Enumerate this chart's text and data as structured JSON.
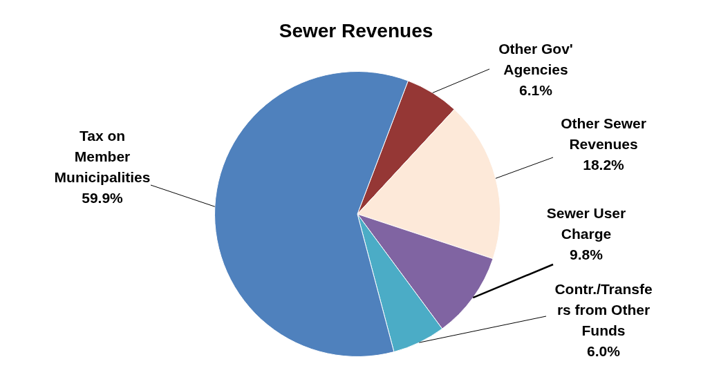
{
  "chart_data": {
    "type": "pie",
    "title": "Sewer Revenues",
    "categories": [
      "Other Gov'\nAgencies",
      "Other Sewer\nRevenues",
      "Sewer User\nCharge",
      "Contr./Transfe\nrs from Other\nFunds",
      "Tax on\nMember\nMunicipalities"
    ],
    "values": [
      6.1,
      18.2,
      9.8,
      6.0,
      59.9
    ],
    "value_labels": [
      "6.1%",
      "18.2%",
      "9.8%",
      "6.0%",
      "59.9%"
    ],
    "colors": [
      "#953735",
      "#fde9d9",
      "#8064a2",
      "#4bacc6",
      "#4f81bd"
    ],
    "legend": false
  }
}
